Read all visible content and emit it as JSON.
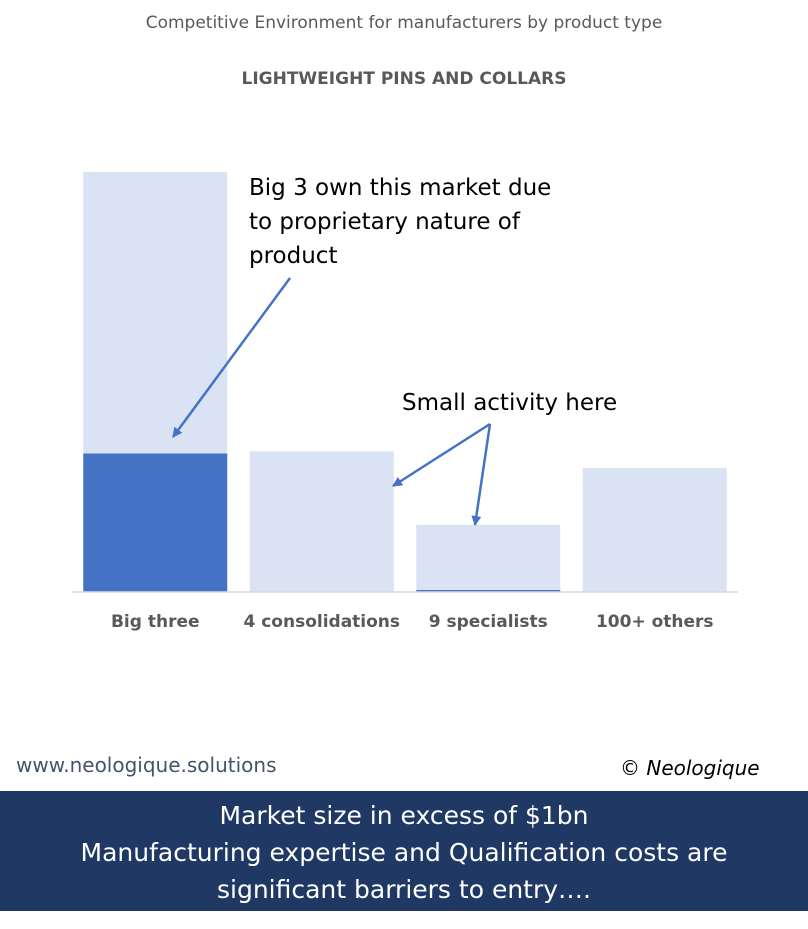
{
  "header": {
    "page_title": "Competitive Environment for manufacturers by product type"
  },
  "chart_data": {
    "type": "bar",
    "title": "LIGHTWEIGHT PINS AND COLLARS",
    "xlabel": "",
    "ylabel": "",
    "categories": [
      "Big three",
      "4 consolidations",
      "9 specialists",
      "100+ others"
    ],
    "series": [
      {
        "values": [
          33,
          0,
          0.5,
          0
        ],
        "color": "#4472C4"
      },
      {
        "values": [
          67,
          33.5,
          15.5,
          29.5
        ],
        "color": "#DAE3F3"
      }
    ],
    "stacked": true,
    "ylim": [
      0,
      100
    ],
    "axes_visible": false,
    "grid": false,
    "legend": "none",
    "annotations": [
      "Big 3 own this market due to proprietary nature of product",
      "Small activity here"
    ]
  },
  "footer": {
    "website": "www.neologique.solutions",
    "copyright": "© Neologique",
    "note_lines": [
      "Market size in excess of $1bn",
      "Manufacturing expertise and Qualification costs are",
      "significant barriers to entry…."
    ]
  }
}
